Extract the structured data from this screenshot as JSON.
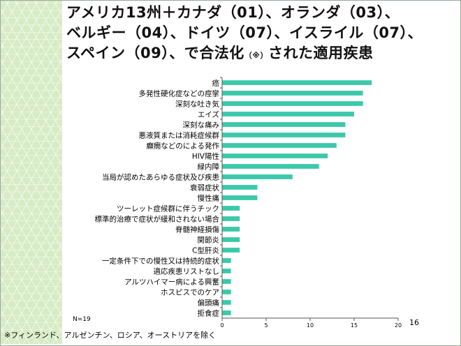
{
  "slide": {
    "title_line1": "アメリカ13州＋カナダ（01）、オランダ（03）、",
    "title_line2": "ベルギー（04）、ドイツ（07）、イスライル（07）、",
    "title_line3_a": "スペイン（09）、で合法化",
    "title_line3_note": "（※）",
    "title_line3_b": "された適用疾患",
    "n_label": "N=19",
    "footnote": "※フィンランド、アルゼンチン、ロシア、オーストリアを除く",
    "page_number": "16",
    "colors": {
      "bar": "#3cc8aa",
      "axis": "#555555",
      "text": "#000000",
      "pattern": "#d6ecc4"
    }
  },
  "chart_data": {
    "type": "bar",
    "orientation": "horizontal",
    "categories": [
      "癌",
      "多発性硬化症などの痙攣",
      "深刻な吐き気",
      "エイズ",
      "深刻な痛み",
      "悪液質または消耗症候群",
      "癲癇などのによる発作",
      "HIV陽性",
      "緑内障",
      "当局が認めたあらゆる症状及び疾患",
      "衰弱症状",
      "慢性痛",
      "ツーレット症候群に伴うチック",
      "標準的治療で症状が緩和されない場合",
      "脊髄神経損傷",
      "関節炎",
      "C型肝炎",
      "一定条件下での慢性又は持続的症状",
      "適応疾患リストなし",
      "アルツハイマー病による興奮",
      "ホスピスでのケア",
      "偏頭痛",
      "拒食症"
    ],
    "values": [
      17,
      16,
      16,
      15,
      14,
      14,
      13,
      12,
      11,
      8,
      4,
      4,
      2,
      2,
      2,
      2,
      2,
      1,
      1,
      1,
      1,
      1,
      1
    ],
    "xlim": [
      0,
      20
    ],
    "xticks": [
      0,
      5,
      10,
      15,
      20
    ],
    "grid": false,
    "legend": "none"
  }
}
